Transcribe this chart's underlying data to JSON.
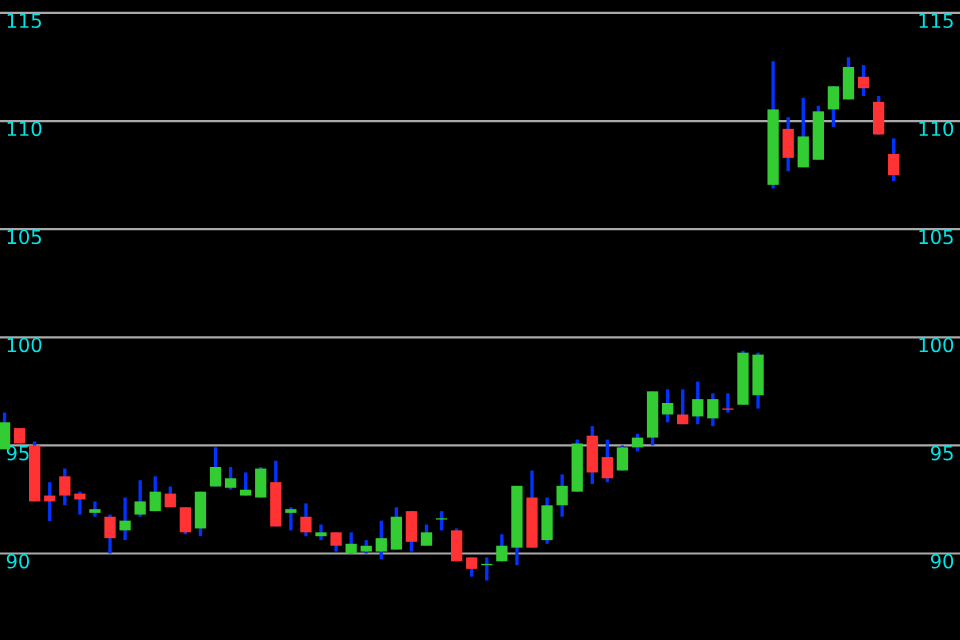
{
  "chart_data": {
    "type": "candlestick",
    "categories": [
      null,
      null,
      null,
      null,
      null,
      null,
      null,
      null,
      null,
      null,
      null,
      null,
      null,
      null,
      null,
      null,
      null,
      null,
      null,
      null,
      null,
      null,
      null,
      null,
      null,
      null,
      null,
      null,
      null,
      null,
      null,
      null,
      null,
      null,
      null,
      null,
      null,
      null,
      null,
      null,
      null,
      null,
      null,
      null,
      null,
      null,
      null,
      null,
      null,
      null,
      null,
      null,
      null,
      null,
      null,
      null,
      null,
      null,
      null,
      null
    ],
    "ohlc": [
      [
        94.82,
        96.52,
        94.82,
        96.07
      ],
      [
        95.8,
        95.8,
        95.09,
        95.09
      ],
      [
        95.0,
        95.18,
        92.41,
        92.41
      ],
      [
        92.68,
        93.3,
        91.5,
        92.41
      ],
      [
        93.57,
        93.93,
        92.23,
        92.68
      ],
      [
        92.77,
        92.86,
        91.8,
        92.5
      ],
      [
        91.88,
        92.41,
        91.7,
        92.05
      ],
      [
        91.7,
        91.8,
        90.0,
        90.71
      ],
      [
        91.07,
        92.59,
        90.62,
        91.52
      ],
      [
        91.8,
        93.39,
        91.7,
        92.41
      ],
      [
        91.96,
        93.57,
        91.96,
        92.86
      ],
      [
        92.77,
        93.1,
        92.14,
        92.14
      ],
      [
        92.14,
        92.14,
        90.89,
        90.98
      ],
      [
        91.16,
        92.86,
        90.8,
        92.86
      ],
      [
        93.1,
        94.91,
        93.1,
        94.0
      ],
      [
        93.04,
        94.0,
        92.95,
        93.48
      ],
      [
        92.68,
        93.75,
        92.68,
        92.95
      ],
      [
        92.59,
        94.0,
        92.59,
        93.93
      ],
      [
        93.3,
        94.29,
        91.25,
        91.25
      ],
      [
        91.88,
        92.14,
        91.07,
        92.05
      ],
      [
        91.7,
        92.32,
        90.8,
        90.98
      ],
      [
        90.8,
        91.34,
        90.62,
        90.98
      ],
      [
        90.98,
        90.98,
        90.09,
        90.36
      ],
      [
        90.0,
        90.98,
        90.0,
        90.45
      ],
      [
        90.09,
        90.62,
        90.0,
        90.36
      ],
      [
        90.09,
        91.52,
        89.73,
        90.71
      ],
      [
        90.18,
        92.14,
        90.18,
        91.7
      ],
      [
        91.96,
        91.96,
        90.09,
        90.54
      ],
      [
        90.36,
        91.34,
        90.36,
        90.98
      ],
      [
        91.57,
        91.96,
        91.07,
        91.61
      ],
      [
        91.07,
        91.16,
        89.64,
        89.64
      ],
      [
        89.82,
        89.82,
        88.93,
        89.29
      ],
      [
        89.46,
        89.82,
        88.75,
        89.5
      ],
      [
        89.64,
        90.89,
        89.64,
        90.36
      ],
      [
        90.27,
        93.13,
        89.46,
        93.13
      ],
      [
        92.59,
        93.84,
        90.27,
        90.27
      ],
      [
        90.62,
        92.59,
        90.45,
        92.23
      ],
      [
        92.23,
        93.66,
        91.7,
        93.13
      ],
      [
        92.86,
        95.27,
        92.86,
        95.09
      ],
      [
        95.45,
        95.89,
        93.21,
        93.75
      ],
      [
        94.46,
        95.27,
        93.3,
        93.48
      ],
      [
        93.84,
        95.0,
        93.84,
        94.91
      ],
      [
        94.91,
        95.54,
        94.73,
        95.36
      ],
      [
        95.36,
        97.5,
        95.0,
        97.5
      ],
      [
        96.43,
        97.59,
        96.07,
        96.96
      ],
      [
        96.43,
        97.59,
        95.98,
        95.98
      ],
      [
        96.34,
        97.95,
        95.98,
        97.14
      ],
      [
        96.25,
        97.41,
        95.89,
        97.14
      ],
      [
        96.7,
        97.41,
        96.52,
        96.65
      ],
      [
        96.88,
        99.38,
        96.88,
        99.29
      ],
      [
        97.32,
        99.29,
        96.7,
        99.2
      ],
      [
        107.05,
        112.77,
        106.88,
        110.54
      ],
      [
        109.64,
        110.18,
        107.68,
        108.3
      ],
      [
        107.86,
        111.07,
        107.86,
        109.29
      ],
      [
        108.21,
        110.71,
        108.21,
        110.45
      ],
      [
        110.54,
        111.61,
        109.73,
        111.61
      ],
      [
        111.0,
        112.95,
        111.0,
        112.5
      ],
      [
        112.05,
        112.59,
        111.16,
        111.52
      ],
      [
        110.89,
        111.16,
        109.38,
        109.38
      ],
      [
        108.48,
        109.2,
        107.23,
        107.5
      ]
    ],
    "colors": [
      "#33cc33",
      "#ff3333",
      "#ff3333",
      "#ff3333",
      "#ff3333",
      "#ff3333",
      "#33cc33",
      "#ff3333",
      "#33cc33",
      "#33cc33",
      "#33cc33",
      "#ff3333",
      "#ff3333",
      "#33cc33",
      "#33cc33",
      "#33cc33",
      "#33cc33",
      "#33cc33",
      "#ff3333",
      "#33cc33",
      "#ff3333",
      "#33cc33",
      "#ff3333",
      "#33cc33",
      "#33cc33",
      "#33cc33",
      "#33cc33",
      "#ff3333",
      "#33cc33",
      "#33cc33",
      "#ff3333",
      "#ff3333",
      "#33cc33",
      "#33cc33",
      "#33cc33",
      "#ff3333",
      "#33cc33",
      "#33cc33",
      "#33cc33",
      "#ff3333",
      "#ff3333",
      "#33cc33",
      "#33cc33",
      "#33cc33",
      "#33cc33",
      "#ff3333",
      "#33cc33",
      "#33cc33",
      "#ff3333",
      "#33cc33",
      "#33cc33",
      "#33cc33",
      "#ff3333",
      "#33cc33",
      "#33cc33",
      "#33cc33",
      "#33cc33",
      "#ff3333",
      "#ff3333",
      "#ff3333"
    ],
    "ylim": [
      86,
      115.6
    ],
    "yticks": [
      90,
      95,
      100,
      105,
      110,
      115
    ],
    "y2lim": [
      86,
      115.6
    ],
    "y2ticks": [
      90,
      95,
      100,
      105,
      110,
      115
    ],
    "grid": "y"
  }
}
